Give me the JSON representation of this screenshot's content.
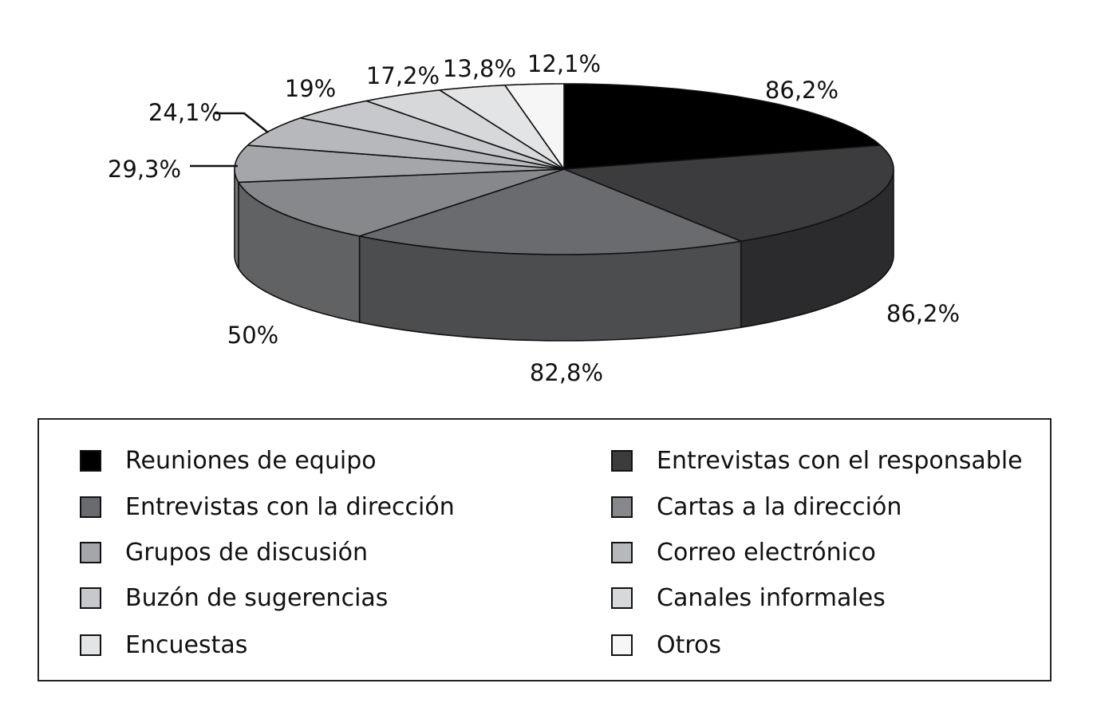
{
  "chart_data": {
    "type": "pie",
    "title": "",
    "style": "3d-exploded-depth",
    "categories": [
      "Reuniones de equipo",
      "Entrevistas con el responsable",
      "Entrevistas con la dirección",
      "Cartas a la dirección",
      "Grupos de discusión",
      "Correo electrónico",
      "Buzón de sugerencias",
      "Canales informales",
      "Encuestas",
      "Otros"
    ],
    "values": [
      86.2,
      86.2,
      82.8,
      50,
      29.3,
      24.1,
      19,
      17.2,
      13.8,
      12.1
    ],
    "data_labels": [
      "86,2%",
      "86,2%",
      "82,8%",
      "50%",
      "29,3%",
      "24,1%",
      "19%",
      "17,2%",
      "13,8%",
      "12,1%"
    ],
    "colors": [
      "#000000",
      "#3c3c3e",
      "#6a6b6e",
      "#86888b",
      "#a4a6a9",
      "#b6b8bb",
      "#c6c8cb",
      "#d6d8da",
      "#e3e4e6",
      "#f6f6f6"
    ],
    "legend_placement": "bottom",
    "grid": false
  },
  "legend": {
    "items": [
      {
        "label": "Reuniones de equipo",
        "color": "#000000"
      },
      {
        "label": "Entrevistas con el responsable",
        "color": "#3c3c3e"
      },
      {
        "label": "Entrevistas con la dirección",
        "color": "#6a6b6e"
      },
      {
        "label": "Cartas a la dirección",
        "color": "#86888b"
      },
      {
        "label": "Grupos de discusión",
        "color": "#a4a6a9"
      },
      {
        "label": "Correo electrónico",
        "color": "#b6b8bb"
      },
      {
        "label": "Buzón de sugerencias",
        "color": "#c6c8cb"
      },
      {
        "label": "Canales informales",
        "color": "#d6d8da"
      },
      {
        "label": "Encuestas",
        "color": "#e3e4e6"
      },
      {
        "label": "Otros",
        "color": "#f6f6f6"
      }
    ]
  }
}
